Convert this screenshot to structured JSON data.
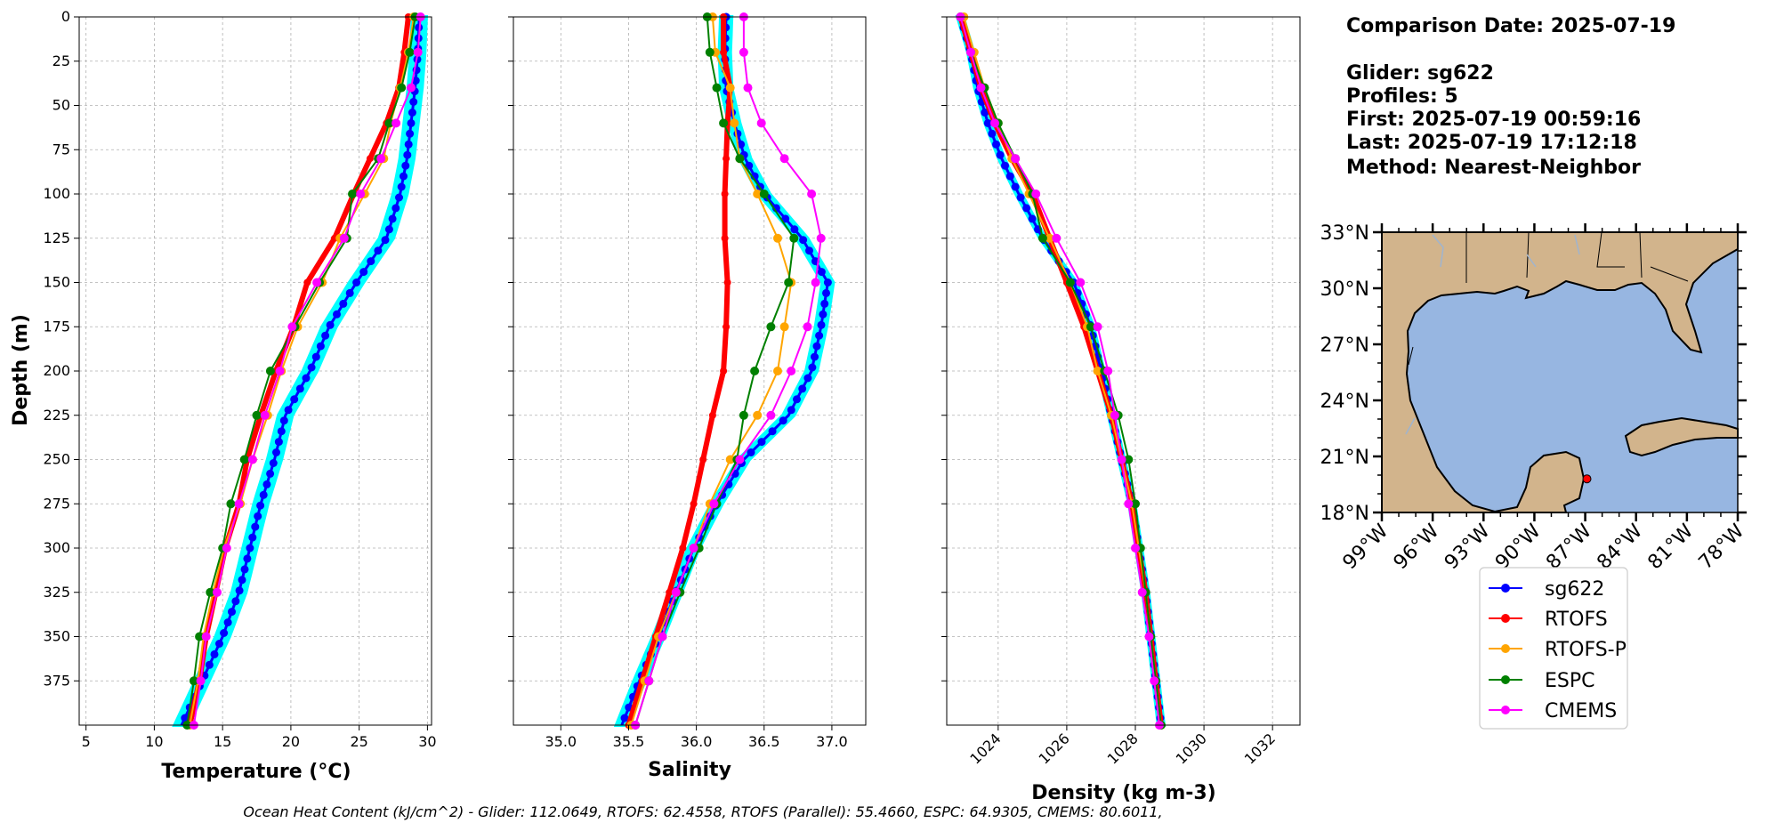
{
  "figure": {
    "info_lines": [
      "Comparison Date: 2025-07-19",
      "",
      "Glider: sg622",
      "Profiles: 5",
      "First: 2025-07-19 00:59:16",
      "Last: 2025-07-19 17:12:18",
      "Method: Nearest-Neighbor"
    ],
    "footer": "Ocean Heat Content (kJ/cm^2) - Glider: 112.0649,  RTOFS: 62.4558,  RTOFS (Parallel): 55.4660,  ESPC: 64.9305,  CMEMS: 80.6011,",
    "legend": [
      "sg622",
      "RTOFS",
      "RTOFS-P",
      "ESPC",
      "CMEMS"
    ],
    "colors": {
      "sg622": "#0000ff",
      "RTOFS": "#ff0000",
      "RTOFS-P": "#ffa500",
      "ESPC": "#008000",
      "CMEMS": "#ff00ff",
      "envelope": "#00ffff",
      "land": "#d2b48c",
      "water": "#97b6e1",
      "glider_marker": "#ff0000"
    }
  },
  "chart_data": [
    {
      "type": "line",
      "xlabel": "Temperature (°C)",
      "ylabel": "Depth (m)",
      "xlim": [
        4.5,
        30.3
      ],
      "ylim": [
        400,
        0
      ],
      "xticks": [
        "5",
        "10",
        "15",
        "20",
        "25",
        "30"
      ],
      "yticks": [
        "0",
        "25",
        "50",
        "75",
        "100",
        "125",
        "150",
        "175",
        "200",
        "225",
        "250",
        "275",
        "300",
        "325",
        "350",
        "375"
      ],
      "grid": true,
      "depth": [
        0,
        20,
        40,
        60,
        80,
        100,
        125,
        150,
        175,
        200,
        225,
        250,
        275,
        300,
        325,
        350,
        375,
        400
      ],
      "series": [
        {
          "name": "sg622",
          "values": [
            29.4,
            29.3,
            29.1,
            28.8,
            28.5,
            28.0,
            27.0,
            24.8,
            22.8,
            21.4,
            19.6,
            18.8,
            17.8,
            17.0,
            16.2,
            15.0,
            13.5,
            12.0
          ]
        },
        {
          "name": "RTOFS",
          "values": [
            28.6,
            28.3,
            27.9,
            27.0,
            25.8,
            24.6,
            23.2,
            21.2,
            20.2,
            18.9,
            17.8,
            16.8,
            16.2,
            15.2,
            14.5,
            13.8,
            13.3,
            12.6
          ]
        },
        {
          "name": "RTOFS-P",
          "values": [
            29.0,
            28.6,
            28.0,
            27.3,
            26.8,
            25.4,
            23.6,
            22.3,
            20.5,
            19.3,
            18.3,
            17.2,
            16.3,
            15.1,
            14.3,
            13.6,
            13.2,
            12.6
          ]
        },
        {
          "name": "ESPC",
          "values": [
            29.1,
            28.7,
            28.1,
            27.2,
            26.4,
            24.5,
            24.1,
            22.1,
            20.3,
            18.5,
            17.5,
            16.6,
            15.6,
            15.0,
            14.1,
            13.3,
            12.9,
            12.4
          ]
        },
        {
          "name": "CMEMS",
          "values": [
            29.5,
            29.3,
            28.8,
            27.7,
            26.6,
            25.1,
            23.9,
            21.9,
            20.1,
            19.2,
            18.1,
            17.2,
            16.2,
            15.3,
            14.6,
            13.8,
            13.4,
            12.9
          ]
        }
      ]
    },
    {
      "type": "line",
      "xlabel": "Salinity",
      "xlim": [
        34.65,
        37.25
      ],
      "ylim": [
        400,
        0
      ],
      "xticks": [
        "35.0",
        "35.5",
        "36.0",
        "36.5",
        "37.0"
      ],
      "grid": true,
      "depth": [
        0,
        20,
        40,
        60,
        80,
        100,
        125,
        150,
        175,
        200,
        225,
        250,
        275,
        300,
        325,
        350,
        375,
        400
      ],
      "series": [
        {
          "name": "sg622",
          "values": [
            36.22,
            36.21,
            36.22,
            36.28,
            36.36,
            36.5,
            36.78,
            36.97,
            36.92,
            36.85,
            36.68,
            36.35,
            36.15,
            35.98,
            35.85,
            35.72,
            35.58,
            35.45
          ]
        },
        {
          "name": "RTOFS",
          "values": [
            36.2,
            36.2,
            36.25,
            36.23,
            36.22,
            36.21,
            36.21,
            36.23,
            36.22,
            36.2,
            36.12,
            36.05,
            35.98,
            35.9,
            35.8,
            35.7,
            35.6,
            35.5
          ]
        },
        {
          "name": "RTOFS-P",
          "values": [
            36.12,
            36.14,
            36.25,
            36.28,
            36.32,
            36.45,
            36.6,
            36.7,
            36.65,
            36.6,
            36.45,
            36.25,
            36.1,
            35.98,
            35.85,
            35.72,
            35.62,
            35.52
          ]
        },
        {
          "name": "ESPC",
          "values": [
            36.08,
            36.1,
            36.15,
            36.2,
            36.32,
            36.5,
            36.72,
            36.68,
            36.55,
            36.43,
            36.35,
            36.3,
            36.15,
            36.02,
            35.88,
            35.75,
            35.65,
            35.55
          ]
        },
        {
          "name": "CMEMS",
          "values": [
            36.35,
            36.35,
            36.38,
            36.48,
            36.65,
            36.85,
            36.92,
            36.88,
            36.82,
            36.7,
            36.55,
            36.32,
            36.13,
            35.98,
            35.85,
            35.75,
            35.65,
            35.55
          ]
        }
      ]
    },
    {
      "type": "line",
      "xlabel": "Density (kg m-3)",
      "xlim": [
        1022.5,
        1032.8
      ],
      "ylim": [
        400,
        0
      ],
      "xticks": [
        "1024",
        "1026",
        "1028",
        "1030",
        "1032"
      ],
      "grid": true,
      "depth": [
        0,
        20,
        40,
        60,
        80,
        100,
        125,
        150,
        175,
        200,
        225,
        250,
        275,
        300,
        325,
        350,
        375,
        400
      ],
      "series": [
        {
          "name": "sg622",
          "values": [
            1022.9,
            1023.2,
            1023.4,
            1023.7,
            1024.1,
            1024.6,
            1025.3,
            1026.2,
            1026.7,
            1027.0,
            1027.3,
            1027.6,
            1027.9,
            1028.1,
            1028.3,
            1028.45,
            1028.6,
            1028.75
          ]
        },
        {
          "name": "RTOFS",
          "values": [
            1022.9,
            1023.2,
            1023.5,
            1023.9,
            1024.4,
            1025.0,
            1025.5,
            1026.0,
            1026.5,
            1026.9,
            1027.3,
            1027.6,
            1027.9,
            1028.1,
            1028.3,
            1028.45,
            1028.6,
            1028.75
          ]
        },
        {
          "name": "RTOFS-P",
          "values": [
            1023.0,
            1023.3,
            1023.6,
            1024.0,
            1024.4,
            1024.9,
            1025.5,
            1026.1,
            1026.6,
            1026.9,
            1027.3,
            1027.6,
            1027.9,
            1028.1,
            1028.3,
            1028.45,
            1028.6,
            1028.75
          ]
        },
        {
          "name": "ESPC",
          "values": [
            1022.9,
            1023.2,
            1023.6,
            1024.0,
            1024.5,
            1025.0,
            1025.3,
            1026.1,
            1026.7,
            1027.1,
            1027.5,
            1027.8,
            1028.0,
            1028.15,
            1028.3,
            1028.45,
            1028.6,
            1028.75
          ]
        },
        {
          "name": "CMEMS",
          "values": [
            1022.9,
            1023.2,
            1023.5,
            1023.9,
            1024.5,
            1025.1,
            1025.7,
            1026.4,
            1026.9,
            1027.2,
            1027.4,
            1027.6,
            1027.8,
            1028.0,
            1028.2,
            1028.4,
            1028.55,
            1028.7
          ]
        }
      ]
    },
    {
      "type": "map",
      "lon_range": [
        -99,
        -78
      ],
      "lat_range": [
        18,
        33
      ],
      "xticks": [
        "99°W",
        "96°W",
        "93°W",
        "90°W",
        "87°W",
        "84°W",
        "81°W",
        "78°W"
      ],
      "yticks": [
        "33°N",
        "30°N",
        "27°N",
        "24°N",
        "21°N",
        "18°N"
      ],
      "glider_position": {
        "lon": -86.9,
        "lat": 19.8
      }
    }
  ]
}
